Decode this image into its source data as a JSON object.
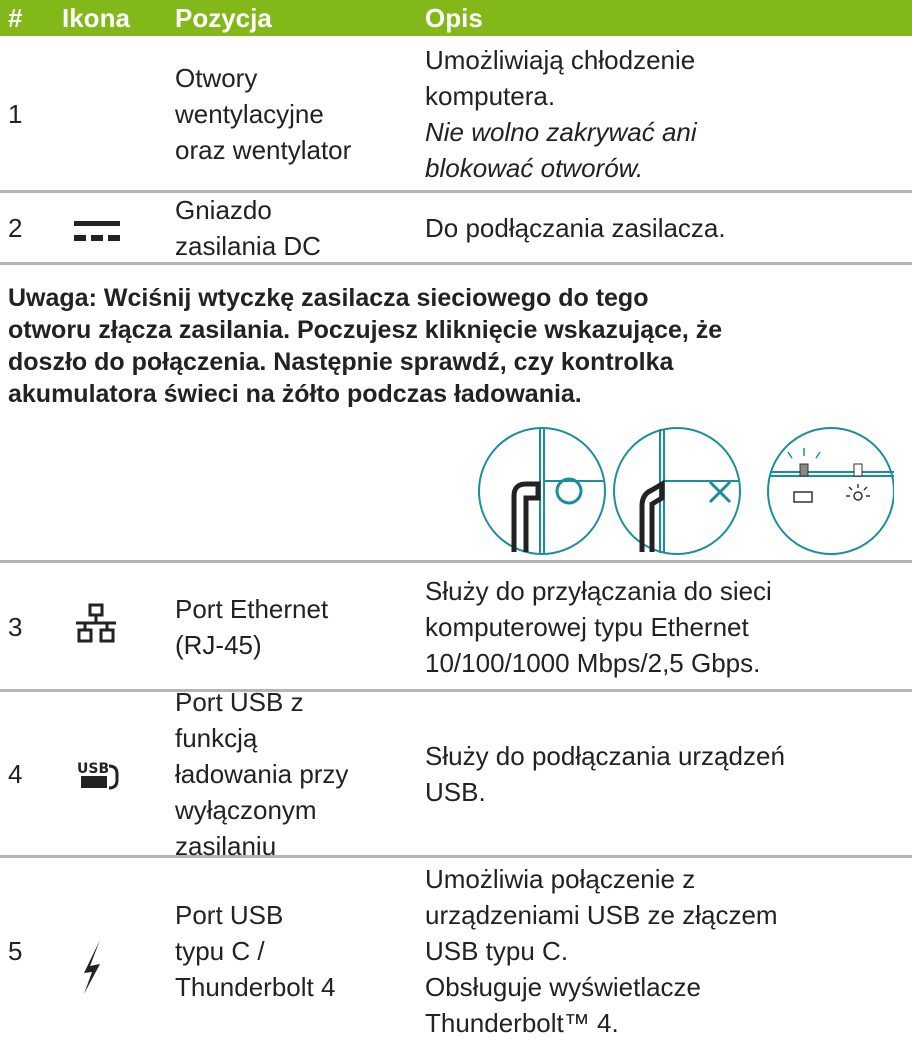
{
  "table": {
    "header": [
      "#",
      "Ikona",
      "Pozycja",
      "Opis"
    ],
    "rows": [
      {
        "number": "1",
        "position": [
          "Otwory",
          "wentylacyjne",
          "oraz wentylator"
        ],
        "description": [
          "Umożliwiają chłodzenie",
          "komputera."
        ],
        "warning": [
          "Nie wolno zakrywać ani",
          "blokować otworów."
        ]
      },
      {
        "number": "2",
        "position": [
          "Gniazdo",
          "zasilania DC"
        ],
        "description": [
          "Do podłączania zasilacza."
        ]
      },
      {
        "number": "3",
        "position": [
          "Port Ethernet",
          "(RJ-45)"
        ],
        "description": [
          "Służy do przyłączania do sieci",
          "komputerowej typu Ethernet",
          "10/100/1000 Mbps/2,5 Gbps."
        ]
      },
      {
        "number": "4",
        "position": [
          "Port USB z",
          "funkcją",
          "ładowania przy",
          "wyłączonym",
          "zasilaniu"
        ],
        "description": [
          "Służy do podłączania urządzeń",
          "USB."
        ]
      },
      {
        "number": "5",
        "position": [
          "Port USB",
          "typu C /",
          "Thunderbolt 4"
        ],
        "description": [
          "Umożliwia połączenie z",
          "urządzeniami USB ze złączem",
          "USB typu C.",
          "Obsługuje wyświetlacze",
          "Thunderbolt™ 4."
        ]
      }
    ]
  },
  "note": [
    "Uwaga: Wciśnij wtyczkę zasilacza sieciowego do tego",
    "otworu złącza zasilania. Poczujesz kliknięcie wskazujące, że",
    "doszło do połączenia. Następnie sprawdź, czy kontrolka",
    "akumulatora świeci na żółto podczas ładowania."
  ]
}
